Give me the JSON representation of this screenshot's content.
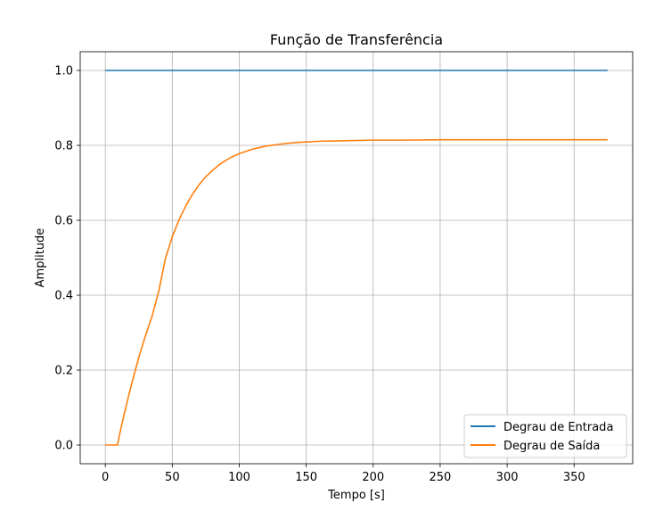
{
  "chart_data": {
    "type": "line",
    "title": "Função de Transferência",
    "xlabel": "Tempo [s]",
    "ylabel": "Amplitude",
    "xlim": [
      -18.75,
      393.75
    ],
    "ylim": [
      -0.05,
      1.05
    ],
    "xticks": [
      0,
      50,
      100,
      150,
      200,
      250,
      300,
      350
    ],
    "xtick_labels": [
      "0",
      "50",
      "100",
      "150",
      "200",
      "250",
      "300",
      "350"
    ],
    "yticks": [
      0.0,
      0.2,
      0.4,
      0.6,
      0.8,
      1.0
    ],
    "ytick_labels": [
      "0.0",
      "0.2",
      "0.4",
      "0.6",
      "0.8",
      "1.0"
    ],
    "grid": true,
    "legend_position": "lower-right",
    "series": [
      {
        "name": "Degrau de Entrada",
        "color": "#1f77b4",
        "x": [
          0,
          375
        ],
        "y": [
          1.0,
          1.0
        ]
      },
      {
        "name": "Degrau de Saída",
        "color": "#ff7f0e",
        "x": [
          0,
          9,
          10,
          12,
          14,
          16,
          18,
          20,
          23,
          26,
          30,
          35,
          40,
          45,
          50,
          55,
          60,
          65,
          70,
          75,
          80,
          85,
          90,
          95,
          100,
          110,
          120,
          130,
          140,
          150,
          160,
          175,
          200,
          225,
          250,
          300,
          375
        ],
        "y": [
          0.0,
          0.0,
          0.017,
          0.05,
          0.081,
          0.111,
          0.14,
          0.168,
          0.208,
          0.246,
          0.292,
          0.345,
          0.412,
          0.5,
          0.556,
          0.601,
          0.638,
          0.669,
          0.695,
          0.716,
          0.733,
          0.748,
          0.76,
          0.77,
          0.778,
          0.79,
          0.798,
          0.803,
          0.807,
          0.809,
          0.811,
          0.812,
          0.814,
          0.814,
          0.815,
          0.815,
          0.815
        ]
      }
    ]
  }
}
